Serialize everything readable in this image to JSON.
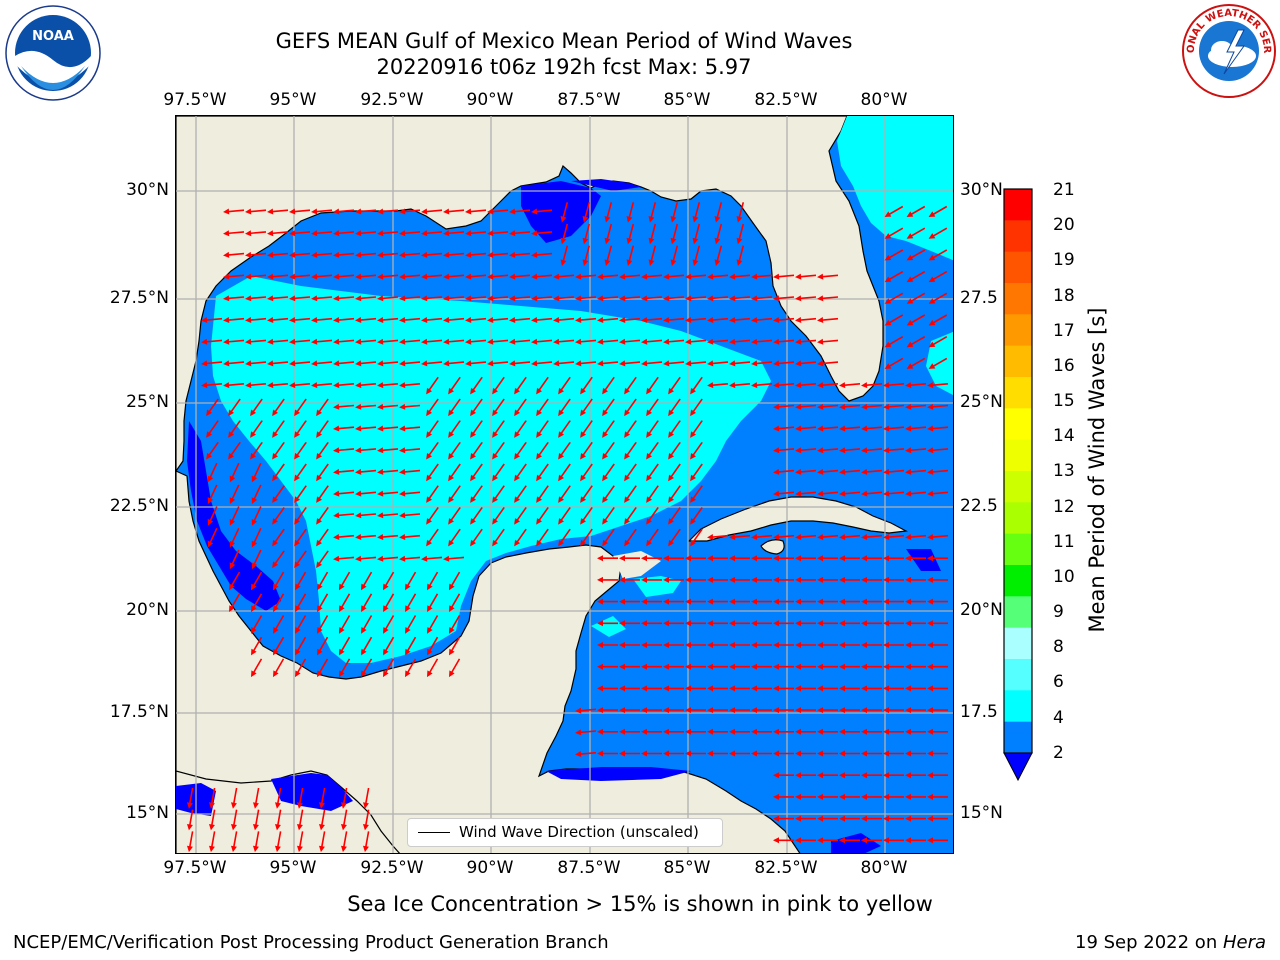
{
  "title": {
    "line1": "GEFS MEAN Gulf of Mexico Mean Period of Wind Waves",
    "line2": "20220916 t06z 192h fcst   Max: 5.97"
  },
  "axes": {
    "lon_ticks": [
      "97.5°W",
      "95°W",
      "92.5°W",
      "90°W",
      "87.5°W",
      "85°W",
      "82.5°W",
      "80°W"
    ],
    "lat_ticks_left": [
      "30°N",
      "27.5°N",
      "25°N",
      "22.5°N",
      "20°N",
      "17.5°N",
      "15°N"
    ],
    "lat_ticks_right": [
      "30°N",
      "27.5",
      "25°N",
      "22.5",
      "20°N",
      "17.5",
      "15°N"
    ]
  },
  "colorbar": {
    "label": "Mean Period of Wind Waves [s]",
    "ticks": [
      "21",
      "20",
      "19",
      "18",
      "17",
      "16",
      "15",
      "14",
      "13",
      "12",
      "11",
      "10",
      "9",
      "8",
      "6",
      "4",
      "2"
    ],
    "colors": [
      "#ff0000",
      "#ff3300",
      "#ff5500",
      "#ff7700",
      "#ff9900",
      "#ffbb00",
      "#ffdd00",
      "#ffff00",
      "#eeff00",
      "#ccff00",
      "#aaff00",
      "#66ff11",
      "#00ee00",
      "#55ff77",
      "#aaffff",
      "#55ffff",
      "#00ffff",
      "#0080ff"
    ],
    "extend_color": "#0000ff"
  },
  "legend": {
    "label": "Wind Wave Direction (unscaled)"
  },
  "note": "Sea Ice Concentration > 15% is shown in pink to yellow",
  "footer": {
    "left": "NCEP/EMC/Verification Post Processing Product Generation Branch",
    "right_prefix": "19 Sep 2022 on ",
    "right_host": "Hera"
  },
  "logos": {
    "left": "NOAA",
    "right": "NATIONAL WEATHER SERVICE"
  },
  "colors": {
    "land": "#efeddd",
    "cyan": "#00ffff",
    "mid_blue": "#0080ff",
    "deep_blue": "#0000ff",
    "arrow": "#ff0000",
    "grid": "#b0b0b0"
  }
}
